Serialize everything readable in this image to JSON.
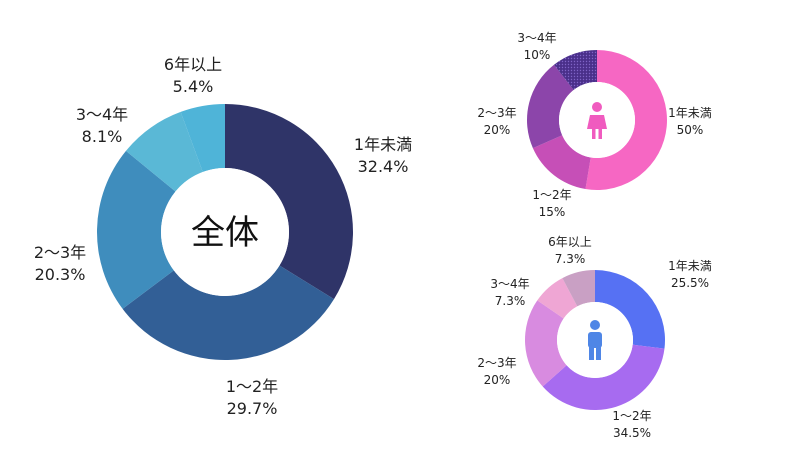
{
  "chart_data": [
    {
      "type": "pie",
      "variant": "donut",
      "title": "全体",
      "categories": [
        "1年未満",
        "1〜2年",
        "2〜3年",
        "3〜4年",
        "6年以上"
      ],
      "values": [
        32.4,
        29.7,
        20.3,
        8.1,
        5.4
      ],
      "value_labels": [
        "32.4%",
        "29.7%",
        "20.3%",
        "8.1%",
        "5.4%"
      ],
      "colors": [
        "#2f3468",
        "#325f96",
        "#3f8dbd",
        "#5ab8d6",
        "#7ee4ea"
      ],
      "last_slice_color": "#4fb4d8",
      "center_icon": null
    },
    {
      "type": "pie",
      "variant": "donut",
      "title": "",
      "categories": [
        "1年未満",
        "1〜2年",
        "2〜3年",
        "3〜4年"
      ],
      "values": [
        50,
        15,
        20,
        10
      ],
      "value_labels": [
        "50%",
        "15%",
        "20%",
        "10%"
      ],
      "colors": [
        "#f667c3",
        "#c64fb7",
        "#8c45aa",
        "#4a2f8a",
        "#10217a"
      ],
      "center_icon": "female-icon",
      "icon_color": "#f05bbf"
    },
    {
      "type": "pie",
      "variant": "donut",
      "title": "",
      "categories": [
        "1年未満",
        "1〜2年",
        "2〜3年",
        "3〜4年",
        "6年以上"
      ],
      "values": [
        25.5,
        34.5,
        20,
        7.3,
        7.3
      ],
      "value_labels": [
        "25.5%",
        "34.5%",
        "20%",
        "7.3%",
        "7.3%"
      ],
      "colors": [
        "#5671f3",
        "#a76bf0",
        "#d88be0",
        "#efa6d4",
        "#f6c0d6"
      ],
      "last_slice_color": "#c9a0c4",
      "center_icon": "male-icon",
      "icon_color": "#4f86e6"
    }
  ]
}
